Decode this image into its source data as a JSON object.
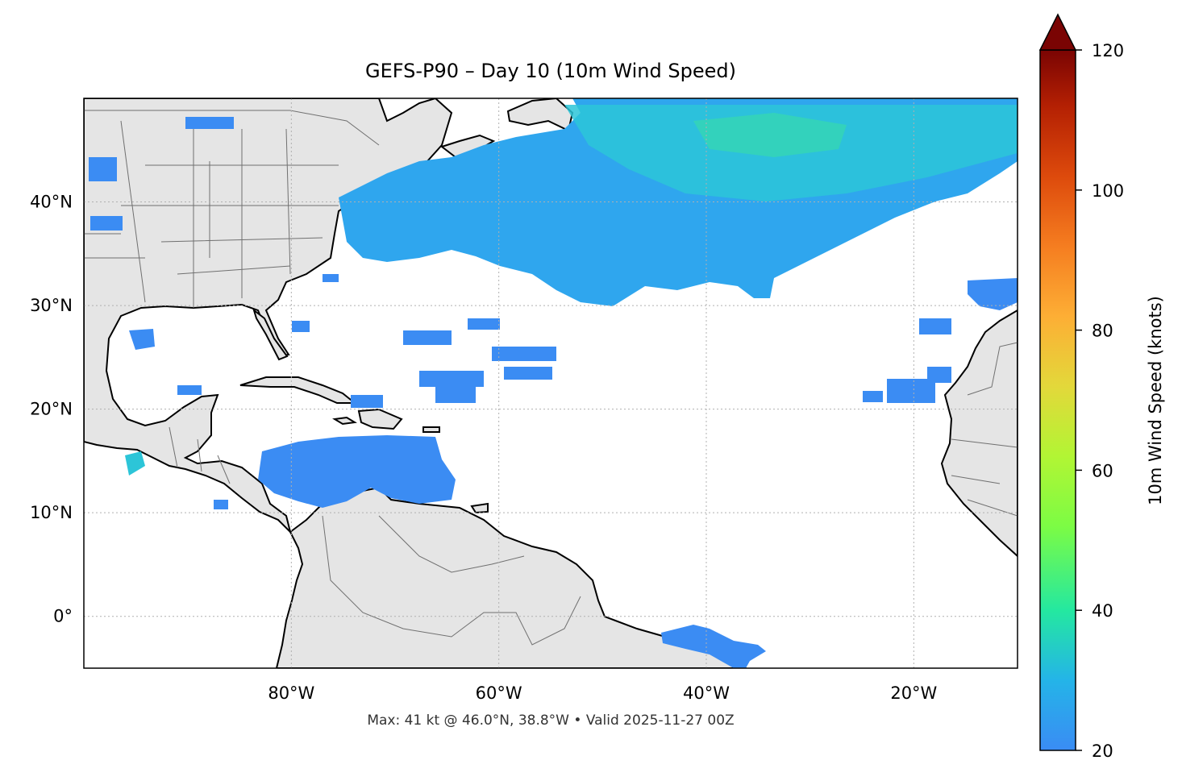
{
  "title": "GEFS-P90 – Day 10 (10m Wind Speed)",
  "footer": "Max: 41 kt @ 46.0°N, 38.8°W • Valid 2025-11-27 00Z",
  "map": {
    "lon_range": [
      -100,
      -10
    ],
    "lat_range": [
      -5,
      50
    ],
    "lon_ticks": [
      {
        "value": -80,
        "label": "80°W"
      },
      {
        "value": -60,
        "label": "60°W"
      },
      {
        "value": -40,
        "label": "40°W"
      },
      {
        "value": -20,
        "label": "20°W"
      }
    ],
    "lat_ticks": [
      {
        "value": 40,
        "label": "40°N"
      },
      {
        "value": 30,
        "label": "30°N"
      },
      {
        "value": 20,
        "label": "20°N"
      },
      {
        "value": 10,
        "label": "10°N"
      },
      {
        "value": 0,
        "label": "0°"
      }
    ],
    "gridlines": true,
    "colors": {
      "land": "#e5e5e5",
      "ocean": "#ffffff",
      "coastline": "#000000",
      "borders": "#707070",
      "wind_low": "#3b8cf3",
      "wind_mid": "#2bbfe0",
      "wind_high": "#3ee69a"
    }
  },
  "colorbar": {
    "label": "10m Wind Speed (knots)",
    "min": 20,
    "max": 120,
    "extend": "max",
    "ticks": [
      {
        "value": 20,
        "label": "20"
      },
      {
        "value": 40,
        "label": "40"
      },
      {
        "value": 60,
        "label": "60"
      },
      {
        "value": 80,
        "label": "80"
      },
      {
        "value": 100,
        "label": "100"
      },
      {
        "value": 120,
        "label": "120"
      }
    ],
    "colormap": "turbo"
  }
}
